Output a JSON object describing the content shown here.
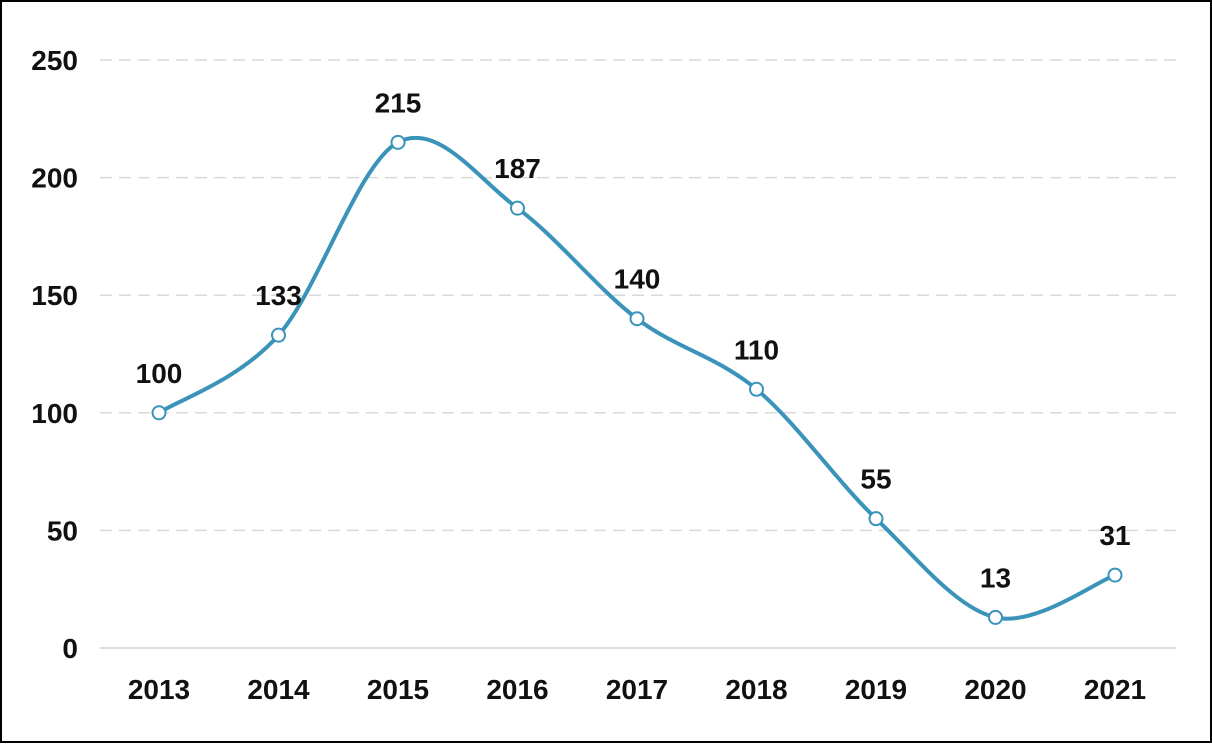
{
  "chart_data": {
    "type": "line",
    "categories": [
      "2013",
      "2014",
      "2015",
      "2016",
      "2017",
      "2018",
      "2019",
      "2020",
      "2021"
    ],
    "series": [
      {
        "values": [
          100,
          133,
          215,
          187,
          140,
          110,
          55,
          13,
          31
        ]
      }
    ],
    "ylim": [
      0,
      250
    ],
    "yticks": [
      0,
      50,
      100,
      150,
      200,
      250
    ],
    "grid": true,
    "smooth": true,
    "data_labels": true,
    "colors": {
      "line": "#3a93b8",
      "grid": "#d9d9d9",
      "marker_fill": "#ffffff"
    }
  }
}
